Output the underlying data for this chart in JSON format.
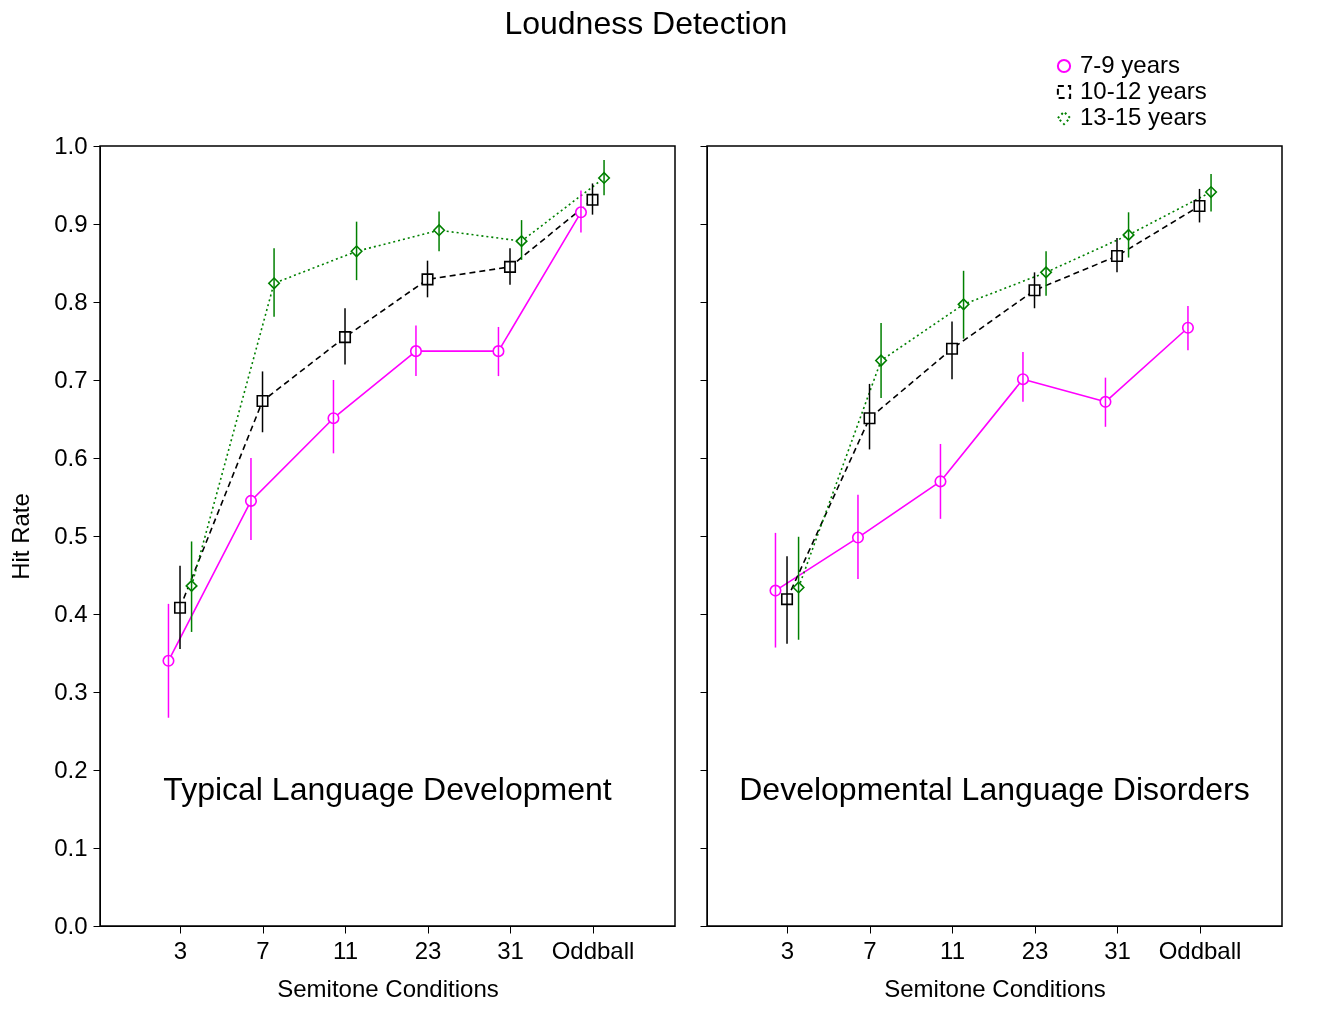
{
  "chart_data": [
    {
      "type": "line",
      "title": "Loudness Detection",
      "xlabel": "Semitone Conditions",
      "ylabel": "Hit Rate",
      "categories": [
        "3",
        "7",
        "11",
        "23",
        "31",
        "Oddball"
      ],
      "ylim": [
        0,
        1
      ],
      "yticks": [
        {
          "value": 0,
          "label": "0.0"
        },
        0.1,
        0.2,
        0.3,
        0.4,
        0.5,
        0.6,
        0.7,
        0.8,
        0.9,
        {
          "value": 1,
          "label": "1.0"
        }
      ],
      "grid": false,
      "legend": false,
      "annotations": [
        "Typical Language Development"
      ],
      "series": [
        {
          "color": "#ff00ff",
          "marker": "circle",
          "line_style": "solid",
          "values": [
            0.34,
            0.545,
            0.651,
            0.737,
            0.737,
            0.915
          ],
          "errors": [
            [
              0.267,
              0.413
            ],
            [
              0.495,
              0.6
            ],
            [
              0.606,
              0.7
            ],
            [
              0.705,
              0.77
            ],
            [
              0.705,
              0.768
            ],
            [
              0.889,
              0.943
            ]
          ]
        },
        {
          "color": "#000000",
          "marker": "square",
          "line_style": "dashed",
          "values": [
            0.408,
            0.673,
            0.755,
            0.829,
            0.845,
            0.931
          ],
          "errors": [
            [
              0.355,
              0.462
            ],
            [
              0.633,
              0.711
            ],
            [
              0.72,
              0.792
            ],
            [
              0.806,
              0.853
            ],
            [
              0.822,
              0.869
            ],
            [
              0.912,
              0.952
            ]
          ]
        },
        {
          "color": "#008000",
          "marker": "diamond",
          "line_style": "dotted",
          "values": [
            0.436,
            0.824,
            0.865,
            0.892,
            0.878,
            0.959
          ],
          "errors": [
            [
              0.377,
              0.493
            ],
            [
              0.781,
              0.869
            ],
            [
              0.828,
              0.903
            ],
            [
              0.865,
              0.916
            ],
            [
              0.854,
              0.905
            ],
            [
              0.937,
              0.982
            ]
          ]
        }
      ]
    },
    {
      "type": "line",
      "xlabel": "Semitone Conditions",
      "categories": [
        "3",
        "7",
        "11",
        "23",
        "31",
        "Oddball"
      ],
      "ylim": [
        0,
        1
      ],
      "yticks": [
        0,
        0.1,
        0.2,
        0.3,
        0.4,
        0.5,
        0.6,
        0.7,
        0.8,
        0.9,
        1
      ],
      "tick_labels": "x",
      "grid": false,
      "legend": "top right",
      "annotations": [
        "Developmental Language Disorders"
      ],
      "series": [
        {
          "name": "7-9 years",
          "color": "#ff00ff",
          "marker": "circle",
          "line_style": "solid",
          "values": [
            0.43,
            0.498,
            0.57,
            0.701,
            0.672,
            0.767
          ],
          "errors": [
            [
              0.357,
              0.504
            ],
            [
              0.445,
              0.553
            ],
            [
              0.522,
              0.618
            ],
            [
              0.672,
              0.736
            ],
            [
              0.64,
              0.703
            ],
            [
              0.738,
              0.795
            ]
          ]
        },
        {
          "name": "10-12 years",
          "color": "#000000",
          "marker": "square",
          "line_style": "dashed",
          "values": [
            0.419,
            0.651,
            0.74,
            0.815,
            0.859,
            0.923
          ],
          "errors": [
            [
              0.362,
              0.474
            ],
            [
              0.611,
              0.695
            ],
            [
              0.701,
              0.775
            ],
            [
              0.792,
              0.838
            ],
            [
              0.838,
              0.882
            ],
            [
              0.902,
              0.945
            ]
          ]
        },
        {
          "name": "13-15 years",
          "color": "#008000",
          "marker": "diamond",
          "line_style": "dotted",
          "values": [
            0.434,
            0.725,
            0.797,
            0.838,
            0.886,
            0.941
          ],
          "errors": [
            [
              0.367,
              0.499
            ],
            [
              0.677,
              0.773
            ],
            [
              0.753,
              0.84
            ],
            [
              0.808,
              0.865
            ],
            [
              0.857,
              0.915
            ],
            [
              0.916,
              0.964
            ]
          ]
        }
      ]
    }
  ]
}
